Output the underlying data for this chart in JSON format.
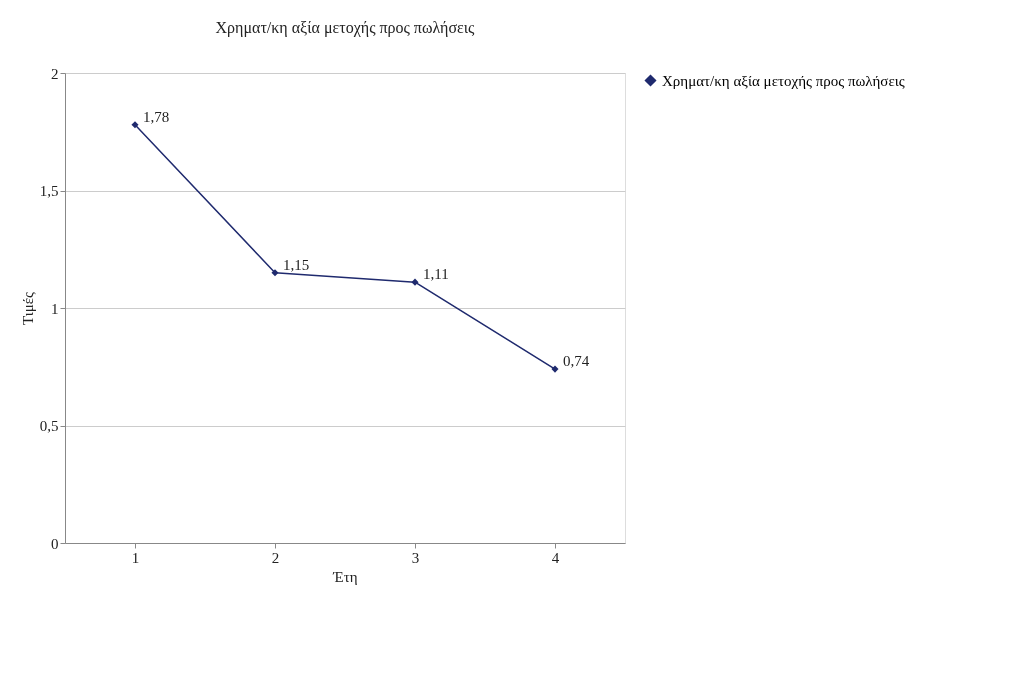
{
  "chart_data": {
    "type": "line",
    "title": "Χρηματ/κη αξία μετοχής προς πωλήσεις",
    "xlabel": "Έτη",
    "ylabel": "Τιμές",
    "categories": [
      "1",
      "2",
      "3",
      "4"
    ],
    "series": [
      {
        "name": "Χρηματ/κη αξία μετοχής προς πωλήσεις",
        "color": "#1f2a6e",
        "values": [
          1.78,
          1.15,
          1.11,
          0.74
        ],
        "value_labels": [
          "1,78",
          "1,15",
          "1,11",
          "0,74"
        ]
      }
    ],
    "ylim": [
      0,
      2
    ],
    "yticks": [
      0,
      {
        "value": 0.5,
        "label": "0,5"
      },
      1,
      {
        "value": 1.5,
        "label": "1,5"
      },
      2
    ],
    "grid": "y",
    "legend": "right",
    "marker": "diamond",
    "line_style": "solid"
  }
}
